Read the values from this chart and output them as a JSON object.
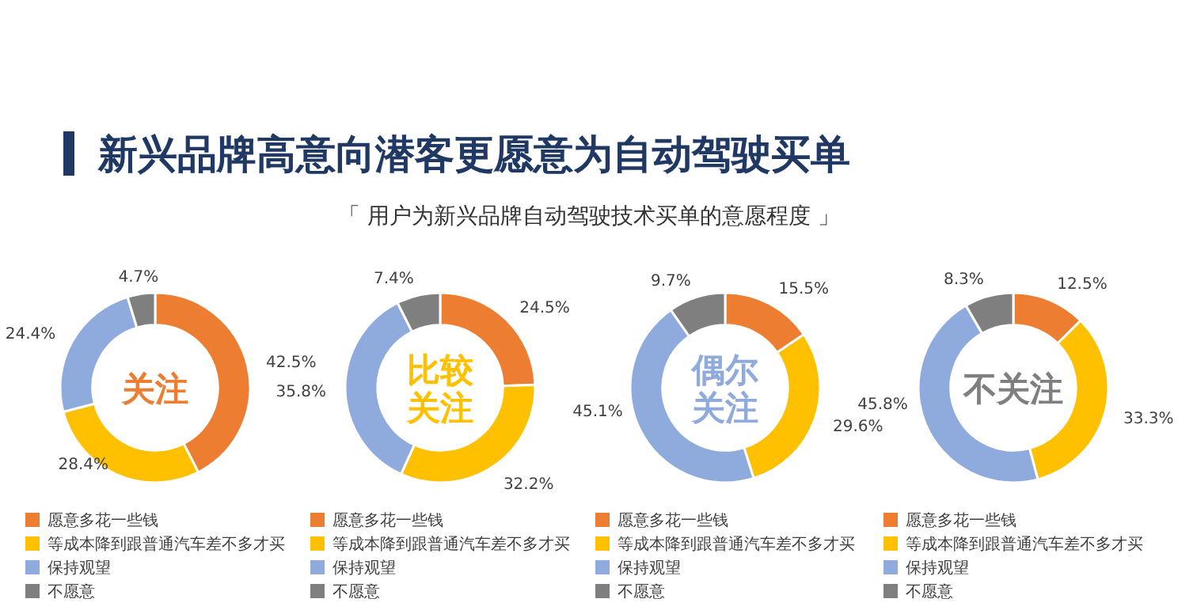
{
  "chart_data": [
    {
      "type": "other",
      "title": "新兴品牌高意向潜客更愿意为自动驾驶买单",
      "subtitle": "「 用户为新兴品牌自动驾驶技术买单的意愿程度 」"
    },
    {
      "type": "donut",
      "title": "关注",
      "categories": [
        "愿意多花一些钱",
        "等成本降到跟普通汽车差不多才买",
        "保持观望",
        "不愿意"
      ],
      "values": [
        42.5,
        28.4,
        24.4,
        4.7
      ],
      "value_labels": [
        "42.5%",
        "28.4%",
        "24.4%",
        "4.7%"
      ],
      "colors": [
        "#ed7d31",
        "#ffc000",
        "#8faadc",
        "#7f7f7f"
      ],
      "legend": "bottom"
    },
    {
      "type": "donut",
      "title": "比较关注",
      "categories": [
        "愿意多花一些钱",
        "等成本降到跟普通汽车差不多才买",
        "保持观望",
        "不愿意"
      ],
      "values": [
        24.5,
        32.2,
        35.8,
        7.4
      ],
      "value_labels": [
        "24.5%",
        "32.2%",
        "35.8%",
        "7.4%"
      ],
      "colors": [
        "#ed7d31",
        "#ffc000",
        "#8faadc",
        "#7f7f7f"
      ],
      "legend": "bottom"
    },
    {
      "type": "donut",
      "title": "偶尔关注",
      "categories": [
        "愿意多花一些钱",
        "等成本降到跟普通汽车差不多才买",
        "保持观望",
        "不愿意"
      ],
      "values": [
        15.5,
        29.6,
        45.1,
        9.7
      ],
      "value_labels": [
        "15.5%",
        "29.6%",
        "45.1%",
        "9.7%"
      ],
      "colors": [
        "#ed7d31",
        "#ffc000",
        "#8faadc",
        "#7f7f7f"
      ],
      "legend": "bottom"
    },
    {
      "type": "donut",
      "title": "不关注",
      "categories": [
        "愿意多花一些钱",
        "等成本降到跟普通汽车差不多才买",
        "保持观望",
        "不愿意"
      ],
      "values": [
        12.5,
        33.3,
        45.8,
        8.3
      ],
      "value_labels": [
        "12.5%",
        "33.3%",
        "45.8%",
        "8.3%"
      ],
      "colors": [
        "#ed7d31",
        "#ffc000",
        "#8faadc",
        "#7f7f7f"
      ],
      "legend": "bottom"
    }
  ]
}
